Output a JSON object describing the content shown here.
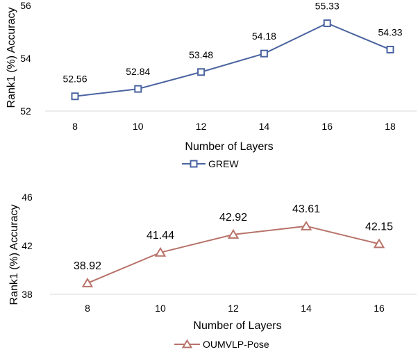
{
  "chart_data": [
    {
      "type": "line",
      "xlabel": "Number of Layers",
      "ylabel": "Rank1 (%) Accuracy",
      "categories": [
        "8",
        "10",
        "12",
        "14",
        "16",
        "18"
      ],
      "ylim": [
        52,
        56
      ],
      "yticks": [
        "52",
        "54",
        "56"
      ],
      "grid": false,
      "legend_position": "bottom",
      "marker": "square",
      "series": [
        {
          "name": "GREW",
          "color": "#4a63a0",
          "values": [
            52.56,
            52.84,
            53.48,
            54.18,
            55.33,
            54.33
          ]
        }
      ],
      "data_labels": [
        "52.56",
        "52.84",
        "53.48",
        "54.18",
        "55.33",
        "54.33"
      ]
    },
    {
      "type": "line",
      "xlabel": "Number of Layers",
      "ylabel": "Rank1 (%) Accuracy",
      "categories": [
        "8",
        "10",
        "12",
        "14",
        "16"
      ],
      "ylim": [
        38,
        46
      ],
      "yticks": [
        "38",
        "42",
        "46"
      ],
      "grid": false,
      "legend_position": "bottom",
      "marker": "triangle",
      "series": [
        {
          "name": "OUMVLP-Pose",
          "color": "#b8736a",
          "values": [
            38.92,
            41.44,
            42.92,
            43.61,
            42.15
          ]
        }
      ],
      "data_labels": [
        "38.92",
        "41.44",
        "42.92",
        "43.61",
        "42.15"
      ]
    }
  ]
}
